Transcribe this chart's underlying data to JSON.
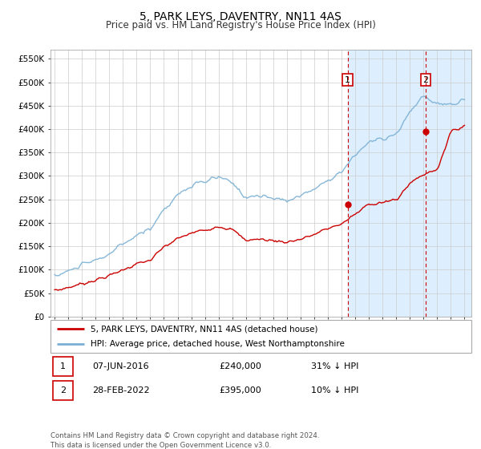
{
  "title": "5, PARK LEYS, DAVENTRY, NN11 4AS",
  "subtitle": "Price paid vs. HM Land Registry's House Price Index (HPI)",
  "ylabel_ticks": [
    "£0",
    "£50K",
    "£100K",
    "£150K",
    "£200K",
    "£250K",
    "£300K",
    "£350K",
    "£400K",
    "£450K",
    "£500K",
    "£550K"
  ],
  "ylim": [
    0,
    570000
  ],
  "hpi_color": "#7ab0d4",
  "price_color": "#cc0000",
  "dot_color": "#cc0000",
  "vline_color": "#cc0000",
  "bg_shade_color": "#ddeeff",
  "grid_color": "#cccccc",
  "transaction1_date": 2016.44,
  "transaction1_price": 240000,
  "transaction2_date": 2022.16,
  "transaction2_price": 395000,
  "legend_line1": "5, PARK LEYS, DAVENTRY, NN11 4AS (detached house)",
  "legend_line2": "HPI: Average price, detached house, West Northamptonshire",
  "table_row1": [
    "1",
    "07-JUN-2016",
    "£240,000",
    "31% ↓ HPI"
  ],
  "table_row2": [
    "2",
    "28-FEB-2022",
    "£395,000",
    "10% ↓ HPI"
  ],
  "footer": "Contains HM Land Registry data © Crown copyright and database right 2024.\nThis data is licensed under the Open Government Licence v3.0.",
  "xmin": 1995.0,
  "xmax": 2025.5
}
